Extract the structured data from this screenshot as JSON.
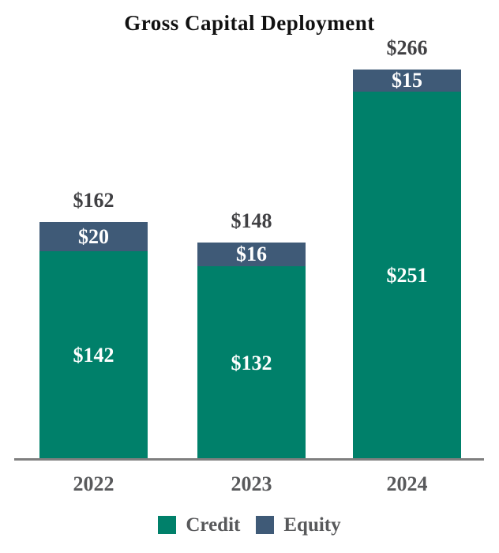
{
  "title": "Gross Capital Deployment",
  "chart_data": {
    "type": "bar",
    "stacked": true,
    "title": "Gross Capital Deployment",
    "xlabel": "",
    "ylabel": "",
    "grid": false,
    "legend_position": "bottom",
    "ylim": [
      0,
      280
    ],
    "categories": [
      "2022",
      "2023",
      "2024"
    ],
    "series": [
      {
        "name": "Credit",
        "color": "#00806A",
        "values": [
          142,
          132,
          251
        ],
        "labels": [
          "$142",
          "$132",
          "$251"
        ]
      },
      {
        "name": "Equity",
        "color": "#3F5A77",
        "values": [
          20,
          16,
          15
        ],
        "labels": [
          "$20",
          "$16",
          "$15"
        ]
      }
    ],
    "totals": [
      162,
      148,
      266
    ],
    "total_labels": [
      "$162",
      "$148",
      "$266"
    ]
  },
  "legend": {
    "items": [
      {
        "label": "Credit",
        "color": "#00806A"
      },
      {
        "label": "Equity",
        "color": "#3F5A77"
      }
    ]
  },
  "colors": {
    "credit": "#00806A",
    "equity": "#3F5A77",
    "total_label": "#404043",
    "axis_label": "#58595b",
    "axis_line": "#7f7f7f",
    "title": "#111111",
    "background": "#ffffff"
  }
}
